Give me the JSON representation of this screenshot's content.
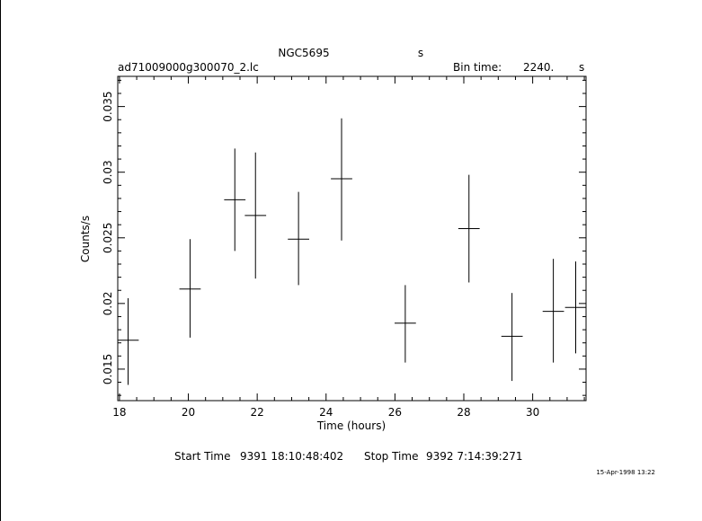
{
  "header": {
    "object": "NGC5695",
    "object_unit": "s",
    "filename": "ad71009000g300070_2.lc",
    "bin_time_label": "Bin time:",
    "bin_time_value": "2240.",
    "bin_time_unit": "s"
  },
  "footer": {
    "start_label": "Start Time",
    "start_value": "9391  18:10:48:402",
    "stop_label": "Stop Time",
    "stop_value": "9392   7:14:39:271",
    "date_stamp": "15-Apr-1998 13:22"
  },
  "chart_data": {
    "type": "scatter",
    "xlabel": "Time (hours)",
    "ylabel": "Counts/s",
    "xlim": [
      17.95,
      31.55
    ],
    "ylim": [
      0.0126,
      0.0373
    ],
    "x_ticks": [
      18,
      20,
      22,
      24,
      26,
      28,
      30
    ],
    "y_ticks": [
      0.015,
      0.02,
      0.025,
      0.03,
      0.035
    ],
    "x_tick_labels": [
      "18",
      "20",
      "22",
      "24",
      "26",
      "28",
      "30"
    ],
    "y_tick_labels": [
      "0.015",
      "0.02",
      "0.025",
      "0.03",
      "0.035"
    ],
    "points": [
      {
        "x": 18.25,
        "xerr": 0.31,
        "y": 0.0172,
        "ylo": 0.0138,
        "yhi": 0.0204
      },
      {
        "x": 20.05,
        "xerr": 0.31,
        "y": 0.0211,
        "ylo": 0.0174,
        "yhi": 0.0249
      },
      {
        "x": 21.35,
        "xerr": 0.31,
        "y": 0.0279,
        "ylo": 0.024,
        "yhi": 0.0318
      },
      {
        "x": 21.95,
        "xerr": 0.31,
        "y": 0.0267,
        "ylo": 0.0219,
        "yhi": 0.0315
      },
      {
        "x": 23.2,
        "xerr": 0.31,
        "y": 0.0249,
        "ylo": 0.0214,
        "yhi": 0.0285
      },
      {
        "x": 24.45,
        "xerr": 0.31,
        "y": 0.0295,
        "ylo": 0.0248,
        "yhi": 0.0341
      },
      {
        "x": 26.3,
        "xerr": 0.31,
        "y": 0.0185,
        "ylo": 0.0155,
        "yhi": 0.0214
      },
      {
        "x": 28.15,
        "xerr": 0.31,
        "y": 0.0257,
        "ylo": 0.0216,
        "yhi": 0.0298
      },
      {
        "x": 29.4,
        "xerr": 0.31,
        "y": 0.0175,
        "ylo": 0.0141,
        "yhi": 0.0208
      },
      {
        "x": 30.6,
        "xerr": 0.31,
        "y": 0.0194,
        "ylo": 0.0155,
        "yhi": 0.0234
      },
      {
        "x": 31.25,
        "xerr": 0.31,
        "y": 0.0197,
        "ylo": 0.0162,
        "yhi": 0.0232
      }
    ]
  }
}
